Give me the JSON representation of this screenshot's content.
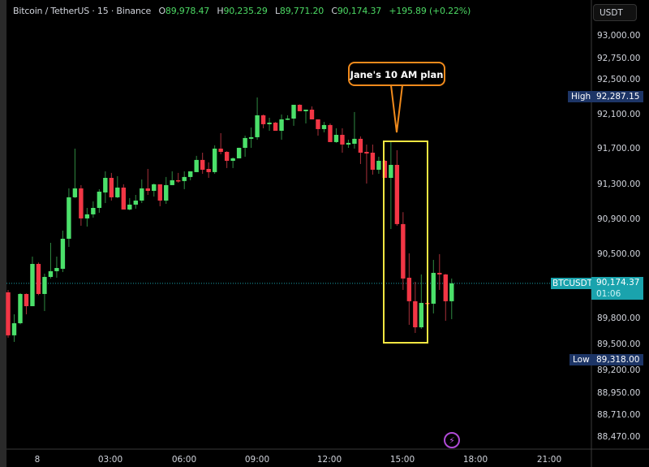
{
  "header": {
    "symbol": "Bitcoin / TetherUS · 15 · Binance",
    "o_label": "O",
    "o_value": "89,978.47",
    "h_label": "H",
    "h_value": "90,235.29",
    "l_label": "L",
    "l_value": "89,771.20",
    "c_label": "C",
    "c_value": "90,174.37",
    "change": "+195.89 (+0.22%)"
  },
  "currency_button": "USDT",
  "high_marker": {
    "label": "High",
    "value": "92,287.15"
  },
  "low_marker": {
    "label": "Low",
    "value": "89,318.00"
  },
  "last_price": {
    "symbol": "BTCUSDT",
    "value": "90,174.37",
    "countdown": "01:06"
  },
  "annotation": {
    "text": "Jane's 10 AM plan",
    "box_color": "#f5e642",
    "callout_color": "#f08a1c"
  },
  "colors": {
    "up": "#4be06a",
    "down": "#f23645",
    "price_line": "#1aa3ad"
  },
  "chart_data": {
    "type": "candlestick",
    "interval": "15",
    "y_ticks": [
      "93,000.00",
      "92,750.00",
      "92,500.00",
      "92,100.00",
      "91,700.00",
      "91,300.00",
      "90,900.00",
      "90,500.00",
      "89,800.00",
      "89,500.00",
      "89,200.00",
      "88,950.00",
      "88,710.00",
      "88,470.00"
    ],
    "x_ticks": [
      "8",
      "03:00",
      "06:00",
      "09:00",
      "12:00",
      "15:00",
      "18:00",
      "21:00"
    ],
    "candles_ohlc": [
      [
        90073,
        90100,
        89560,
        89586
      ],
      [
        89586,
        89824,
        89512,
        89723
      ],
      [
        89723,
        90064,
        89710,
        90054
      ],
      [
        90054,
        90060,
        89824,
        89916
      ],
      [
        89916,
        90477,
        89916,
        90394
      ],
      [
        90394,
        90410,
        90040,
        90054
      ],
      [
        90054,
        90284,
        89861,
        90247
      ],
      [
        90247,
        90633,
        90229,
        90312
      ],
      [
        90312,
        90477,
        90238,
        90348
      ],
      [
        90339,
        90771,
        90302,
        90679
      ],
      [
        90679,
        91249,
        90587,
        91148
      ],
      [
        91148,
        91699,
        91140,
        91249
      ],
      [
        91249,
        91286,
        90826,
        90909
      ],
      [
        90909,
        91028,
        90817,
        90955
      ],
      [
        90955,
        91102,
        90918,
        91028
      ],
      [
        91028,
        91240,
        90973,
        91212
      ],
      [
        91203,
        91442,
        91083,
        91368
      ],
      [
        91368,
        91424,
        91111,
        91148
      ],
      [
        91148,
        91387,
        91139,
        91258
      ],
      [
        91258,
        91295,
        91010,
        91010
      ],
      [
        91010,
        91139,
        91001,
        91065
      ],
      [
        91065,
        91175,
        91019,
        91111
      ],
      [
        91111,
        91350,
        91083,
        91249
      ],
      [
        91249,
        91469,
        91175,
        91221
      ],
      [
        91221,
        91304,
        91157,
        91295
      ],
      [
        91295,
        91295,
        91047,
        91111
      ],
      [
        91111,
        91378,
        91074,
        91286
      ],
      [
        91286,
        91442,
        91286,
        91341
      ],
      [
        91341,
        91424,
        91313,
        91332
      ],
      [
        91332,
        91442,
        91240,
        91378
      ],
      [
        91378,
        91442,
        91341,
        91442
      ],
      [
        91433,
        91617,
        91433,
        91571
      ],
      [
        91571,
        91653,
        91414,
        91460
      ],
      [
        91469,
        91543,
        91368,
        91433
      ],
      [
        91433,
        91736,
        91414,
        91699
      ],
      [
        91699,
        91874,
        91635,
        91662
      ],
      [
        91662,
        91670,
        91479,
        91561
      ],
      [
        91561,
        91600,
        91479,
        91589
      ],
      [
        91589,
        91710,
        91589,
        91708
      ],
      [
        91708,
        91846,
        91607,
        91819
      ],
      [
        91810,
        91938,
        91708,
        91828
      ],
      [
        91828,
        92278,
        91800,
        92076
      ],
      [
        92076,
        92085,
        91929,
        91975
      ],
      [
        91975,
        92048,
        91901,
        91993
      ],
      [
        91993,
        92000,
        91901,
        91901
      ],
      [
        91901,
        92085,
        91800,
        92030
      ],
      [
        92030,
        92076,
        92021,
        92039
      ],
      [
        92039,
        92195,
        91957,
        92195
      ],
      [
        92195,
        92200,
        92122,
        92122
      ],
      [
        92122,
        92140,
        91984,
        92140
      ],
      [
        92140,
        92177,
        92030,
        92030
      ],
      [
        92030,
        92030,
        91846,
        91920
      ],
      [
        91920,
        92002,
        91883,
        91966
      ],
      [
        91966,
        91984,
        91773,
        91773
      ],
      [
        91773,
        91929,
        91764,
        91855
      ],
      [
        91855,
        91929,
        91653,
        91745
      ],
      [
        91745,
        91800,
        91708,
        91764
      ],
      [
        91754,
        92113,
        91699,
        91810
      ],
      [
        91810,
        91837,
        91525,
        91653
      ],
      [
        91662,
        91745,
        91304,
        91644
      ],
      [
        91653,
        91745,
        91405,
        91460
      ],
      [
        91460,
        91607,
        91414,
        91561
      ],
      [
        91561,
        91570,
        91368,
        91368
      ],
      [
        91368,
        91773,
        90789,
        91515
      ],
      [
        91515,
        91681,
        90826,
        90845
      ],
      [
        90845,
        90980,
        90100,
        90229
      ],
      [
        90238,
        90514,
        89705,
        89972
      ],
      [
        89972,
        90192,
        89613,
        89677
      ],
      [
        89677,
        90275,
        89659,
        89953
      ],
      [
        89953,
        89960,
        89940,
        89944
      ],
      [
        89944,
        90440,
        89834,
        90293
      ],
      [
        90293,
        90505,
        90100,
        90275
      ],
      [
        90275,
        90280,
        89751,
        89972
      ],
      [
        89972,
        90229,
        89769,
        90174
      ]
    ],
    "current_price": 90174.37,
    "day_high": 92287.15,
    "day_low": 89318.0,
    "highlight_range_candles": [
      63,
      68
    ],
    "grid": false
  }
}
